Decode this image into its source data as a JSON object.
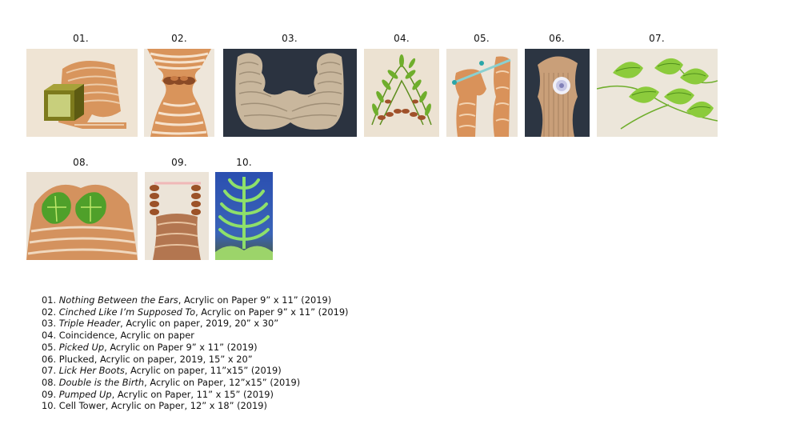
{
  "artworks": [
    {
      "number": "01.",
      "title": "Nothing Between the Ears",
      "details": ", Acrylic on Paper 9” x 11” (2019)"
    },
    {
      "number": "02.",
      "title": "Cinched Like I’m Supposed To",
      "details": ", Acrylic on Paper 9” x 11” (2019)"
    },
    {
      "number": "03.",
      "title": "Triple Header",
      "details": ", Acrylic on paper, 2019, 20” x 30”"
    },
    {
      "number": "04.",
      "title": "Coincidence",
      "details": ", Acrylic on paper"
    },
    {
      "number": "05.",
      "title": "Picked Up",
      "details": ", Acrylic on Paper 9” x 11” (2019)"
    },
    {
      "number": "06.",
      "title": "Plucked",
      "details": ", Acrylic on paper, 2019, 15” x 20”"
    },
    {
      "number": "07.",
      "title": "Lick Her Boots",
      "details": ", Acrylic on paper, 11”x15” (2019)"
    },
    {
      "number": "08.",
      "title": "Double is the Birth",
      "details": ", Acrylic on Paper, 12”x15” (2019)"
    },
    {
      "number": "09.",
      "title": "Pumped Up",
      "details": ", Acrylic on Paper, 11” x 15” (2019)"
    },
    {
      "number": "10.",
      "title": "Cell Tower",
      "details": ", Acrylic on Paper, 12” x 18” (2019)"
    }
  ],
  "colors": {
    "hair": "#d99a66",
    "cream": "#efe6d8",
    "navy": "#2b3340",
    "leaf": "#7cc43c",
    "blue": "#2f4fa8"
  }
}
